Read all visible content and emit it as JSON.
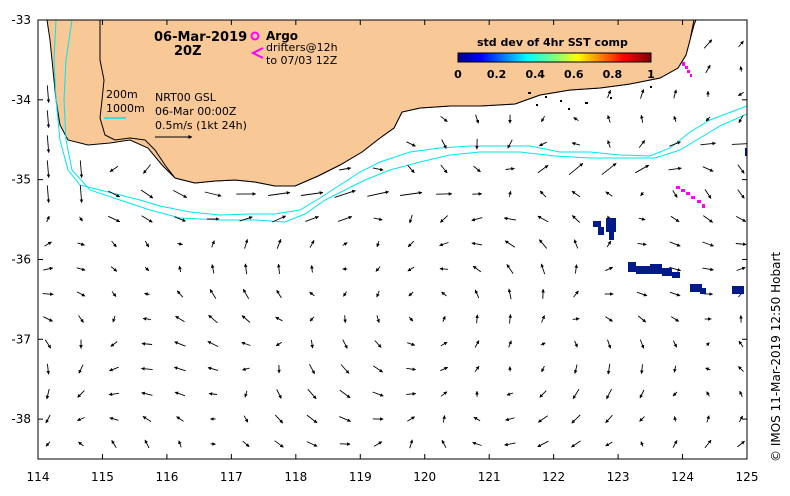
{
  "map": {
    "date": "06-Mar-2019",
    "hour": "20Z",
    "argo_label": "Argo",
    "drifters_line1": "drifters@12h",
    "drifters_line2": "to 07/03 12Z",
    "contour_200": "200m",
    "contour_1000": "1000m",
    "product": "NRT00 GSL",
    "valid_time": "06-Mar 00:00Z",
    "scale_label": "0.5m/s (1kt 24h)",
    "credit": "© IMOS 11-Mar-2019 12:50 Hobart",
    "colorbar": {
      "title": "std dev of 4hr SST comp",
      "ticks": [
        "0",
        "0.2",
        "0.4",
        "0.6",
        "0.8",
        "1"
      ],
      "range": [
        0,
        1
      ]
    },
    "axes": {
      "x_ticks": [
        "114",
        "115",
        "116",
        "117",
        "118",
        "119",
        "120",
        "121",
        "122",
        "123",
        "124",
        "125"
      ],
      "y_ticks": [
        "-33",
        "-34",
        "-35",
        "-36",
        "-37",
        "-38"
      ],
      "lon_range": [
        114,
        125
      ],
      "lat_range": [
        -38.5,
        -33
      ]
    },
    "colors": {
      "land": "#f9c897",
      "contour": "#00e5ee",
      "argo": "#ff00ff",
      "low_std": "#001a8c"
    }
  }
}
